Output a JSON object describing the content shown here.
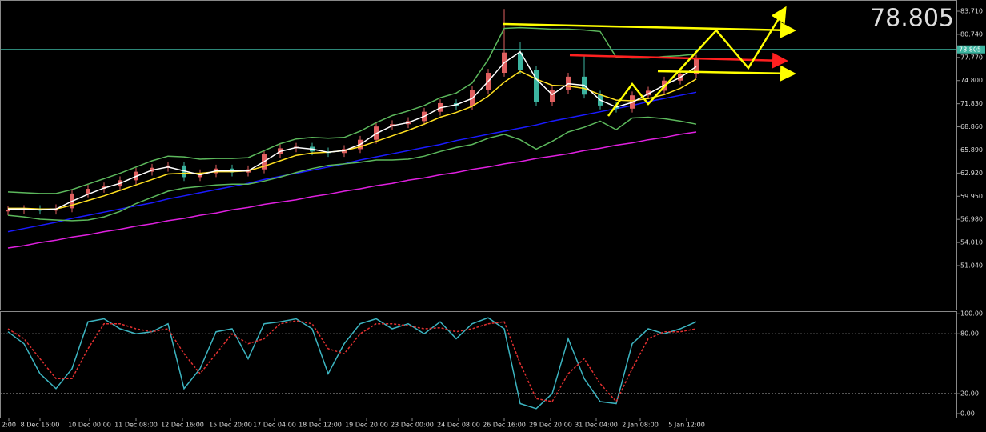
{
  "chart_data": [
    {
      "type": "candlestick",
      "open": [
        58.0,
        58.2,
        58.3,
        58.1,
        58.4,
        60.3,
        60.9,
        61.2,
        62.0,
        63.1,
        63.6,
        63.9,
        62.4,
        62.9,
        63.5,
        63.0,
        63.4,
        65.4,
        66.1,
        66.3,
        65.7,
        65.5,
        66.0,
        67.2,
        68.9,
        69.2,
        69.6,
        70.8,
        71.9,
        71.5,
        73.6,
        75.8,
        78.4,
        76.2,
        72.0,
        73.6,
        75.3,
        73.0,
        71.6,
        71.2,
        72.9,
        73.5,
        74.8,
        75.6
      ],
      "high": [
        58.7,
        58.8,
        58.8,
        58.9,
        60.8,
        61.4,
        61.7,
        62.5,
        63.6,
        64.1,
        64.4,
        64.4,
        63.4,
        64.0,
        64.0,
        63.9,
        65.9,
        66.6,
        66.8,
        66.8,
        66.2,
        66.5,
        67.7,
        69.4,
        69.7,
        70.1,
        71.3,
        72.4,
        72.4,
        74.1,
        76.3,
        84.0,
        79.8,
        76.7,
        74.1,
        75.8,
        78.0,
        73.5,
        72.1,
        73.4,
        74.0,
        75.3,
        76.1,
        78.1
      ],
      "low": [
        57.5,
        57.7,
        57.6,
        57.6,
        57.9,
        59.8,
        60.4,
        60.7,
        61.5,
        62.6,
        63.1,
        61.9,
        61.9,
        62.4,
        62.5,
        62.5,
        62.9,
        64.9,
        65.6,
        65.2,
        65.0,
        65.0,
        65.5,
        66.7,
        68.4,
        68.7,
        69.1,
        70.3,
        71.0,
        71.0,
        73.1,
        75.3,
        75.7,
        71.5,
        71.5,
        73.1,
        72.5,
        71.1,
        70.7,
        70.7,
        72.4,
        73.0,
        74.3,
        75.1
      ],
      "close": [
        58.2,
        58.3,
        58.1,
        58.4,
        60.3,
        60.9,
        61.2,
        62.0,
        63.1,
        63.6,
        63.9,
        62.4,
        62.9,
        63.5,
        63.0,
        63.4,
        65.4,
        66.1,
        66.3,
        65.7,
        65.5,
        66.0,
        67.2,
        68.9,
        69.2,
        69.6,
        70.8,
        71.9,
        71.5,
        73.6,
        75.8,
        78.4,
        76.2,
        72.0,
        73.6,
        75.3,
        73.0,
        71.6,
        71.2,
        72.9,
        73.5,
        74.8,
        75.6,
        77.6
      ],
      "up_color": "#e06060",
      "down_color": "#3cb4a0",
      "series": [
        {
          "color": "#1a1aff",
          "values": [
            55.4,
            55.8,
            56.2,
            56.6,
            57.1,
            57.5,
            57.9,
            58.3,
            58.7,
            59.1,
            59.6,
            60.0,
            60.4,
            60.8,
            61.2,
            61.6,
            62.1,
            62.5,
            62.9,
            63.3,
            63.7,
            64.1,
            64.6,
            65.0,
            65.4,
            65.8,
            66.2,
            66.6,
            67.1,
            67.5,
            67.9,
            68.3,
            68.7,
            69.1,
            69.6,
            70.0,
            70.4,
            70.8,
            71.2,
            71.6,
            72.1,
            72.5,
            72.9,
            73.3
          ]
        },
        {
          "color": "#e020e0",
          "values": [
            53.3,
            53.6,
            54.0,
            54.3,
            54.7,
            55.0,
            55.4,
            55.7,
            56.1,
            56.4,
            56.8,
            57.1,
            57.5,
            57.8,
            58.2,
            58.5,
            58.9,
            59.2,
            59.5,
            59.9,
            60.2,
            60.6,
            60.9,
            61.3,
            61.6,
            62.0,
            62.3,
            62.7,
            63.0,
            63.4,
            63.7,
            64.1,
            64.4,
            64.8,
            65.1,
            65.4,
            65.8,
            66.1,
            66.5,
            66.8,
            67.2,
            67.5,
            67.9,
            68.2
          ]
        },
        {
          "color": "#5cb85c",
          "values": [
            60.5,
            60.4,
            60.3,
            60.3,
            60.8,
            61.5,
            62.2,
            62.9,
            63.7,
            64.5,
            65.1,
            65.0,
            64.7,
            64.8,
            64.8,
            64.9,
            65.8,
            66.7,
            67.3,
            67.5,
            67.4,
            67.5,
            68.3,
            69.4,
            70.3,
            70.9,
            71.6,
            72.6,
            73.2,
            74.5,
            77.5,
            81.5,
            81.6,
            81.5,
            81.4,
            81.4,
            81.3,
            81.1,
            77.8,
            77.7,
            77.7,
            77.9,
            78.0,
            78.2
          ]
        },
        {
          "color": "#5cb85c",
          "values": [
            57.5,
            57.3,
            57.0,
            56.9,
            56.8,
            56.9,
            57.3,
            58.0,
            59.0,
            59.8,
            60.6,
            61.0,
            61.2,
            61.4,
            61.5,
            61.5,
            61.9,
            62.4,
            63.0,
            63.5,
            63.9,
            64.1,
            64.3,
            64.6,
            64.6,
            64.7,
            65.1,
            65.7,
            66.2,
            66.6,
            67.4,
            67.9,
            67.2,
            66.0,
            67.0,
            68.2,
            68.8,
            69.6,
            68.5,
            70.0,
            70.1,
            69.9,
            69.6,
            69.2
          ]
        },
        {
          "color": "#ffe020",
          "values": [
            58.4,
            58.4,
            58.3,
            58.3,
            58.8,
            59.4,
            60.0,
            60.7,
            61.4,
            62.1,
            62.8,
            62.9,
            62.9,
            63.1,
            63.1,
            63.2,
            63.8,
            64.5,
            65.2,
            65.5,
            65.6,
            65.8,
            66.3,
            67.0,
            67.7,
            68.4,
            69.2,
            70.1,
            70.7,
            71.5,
            72.8,
            74.6,
            76.0,
            75.0,
            74.2,
            74.1,
            73.8,
            73.0,
            72.3,
            72.2,
            72.5,
            73.0,
            73.8,
            75.0
          ]
        },
        {
          "color": "#ffffff",
          "values": [
            58.3,
            58.3,
            58.2,
            58.3,
            59.3,
            60.2,
            61.0,
            61.6,
            62.5,
            63.3,
            63.7,
            63.2,
            62.7,
            63.2,
            63.2,
            63.2,
            64.4,
            65.7,
            66.2,
            66.0,
            65.6,
            65.8,
            66.6,
            68.0,
            69.0,
            69.4,
            70.2,
            71.3,
            71.7,
            72.5,
            74.7,
            77.1,
            78.5,
            75.0,
            73.0,
            74.4,
            74.2,
            72.3,
            71.4,
            72.0,
            73.1,
            74.2,
            75.2,
            76.6
          ]
        }
      ],
      "xlim": [
        -0.5,
        59.25
      ],
      "ylim": [
        45.39,
        85.15
      ],
      "yticks": [
        {
          "value": 83.71,
          "label": "83.710"
        },
        {
          "value": 80.74,
          "label": "80.740"
        },
        {
          "value": 77.77,
          "label": "77.770"
        },
        {
          "value": 74.8,
          "label": "74.800"
        },
        {
          "value": 71.83,
          "label": "71.830"
        },
        {
          "value": 68.86,
          "label": "68.860"
        },
        {
          "value": 65.89,
          "label": "65.890"
        },
        {
          "value": 62.92,
          "label": "62.920"
        },
        {
          "value": 59.95,
          "label": "59.950"
        },
        {
          "value": 56.98,
          "label": "56.980"
        },
        {
          "value": 54.01,
          "label": "54.010"
        },
        {
          "value": 51.04,
          "label": "51.040"
        }
      ],
      "current_price": 78.805,
      "price_color": "#e00000",
      "price_line_color": "#3cb4a0"
    },
    {
      "type": "line",
      "series": [
        {
          "color": "#3cb4c0",
          "values": [
            82,
            70,
            40,
            25,
            45,
            92,
            95,
            85,
            80,
            82,
            90,
            25,
            45,
            82,
            85,
            55,
            90,
            92,
            95,
            85,
            40,
            70,
            90,
            95,
            85,
            90,
            80,
            92,
            75,
            90,
            96,
            85,
            10,
            5,
            20,
            75,
            35,
            12,
            10,
            70,
            85,
            80,
            85,
            92
          ]
        },
        {
          "color": "#e03030",
          "dashed": true,
          "values": [
            85,
            75,
            55,
            35,
            35,
            65,
            90,
            90,
            85,
            82,
            85,
            60,
            40,
            60,
            80,
            70,
            75,
            90,
            93,
            90,
            65,
            60,
            80,
            90,
            90,
            88,
            85,
            86,
            82,
            85,
            90,
            92,
            50,
            15,
            12,
            40,
            55,
            30,
            12,
            45,
            75,
            82,
            82,
            85
          ]
        }
      ],
      "xlim": [
        -0.5,
        59.25
      ],
      "ylim": [
        -4.0,
        102.6
      ],
      "yticks": [
        {
          "value": 100,
          "label": "100.00"
        },
        {
          "value": 80,
          "label": "80.00"
        },
        {
          "value": 20,
          "label": "20.00"
        },
        {
          "value": 0,
          "label": "0.00"
        }
      ],
      "dotted_levels": [
        80,
        20
      ],
      "xticks": [
        {
          "value": 0.05,
          "label": "2:00"
        },
        {
          "value": 2,
          "label": "8 Dec 16:00"
        },
        {
          "value": 5.1,
          "label": "10 Dec 00:00"
        },
        {
          "value": 8,
          "label": "11 Dec 08:00"
        },
        {
          "value": 10.9,
          "label": "12 Dec 16:00"
        },
        {
          "value": 13.9,
          "label": "15 Dec 20:00"
        },
        {
          "value": 16.65,
          "label": "17 Dec 04:00"
        },
        {
          "value": 19.5,
          "label": "18 Dec 12:00"
        },
        {
          "value": 22.4,
          "label": "19 Dec 20:00"
        },
        {
          "value": 25.25,
          "label": "23 Dec 00:00"
        },
        {
          "value": 28.15,
          "label": "24 Dec 08:00"
        },
        {
          "value": 31,
          "label": "26 Dec 16:00"
        },
        {
          "value": 33.9,
          "label": "29 Dec 20:00"
        },
        {
          "value": 36.75,
          "label": "31 Dec 04:00"
        },
        {
          "value": 39.5,
          "label": "2 Jan 08:00"
        },
        {
          "value": 42.4,
          "label": "5 Jan 12:00"
        }
      ]
    }
  ]
}
